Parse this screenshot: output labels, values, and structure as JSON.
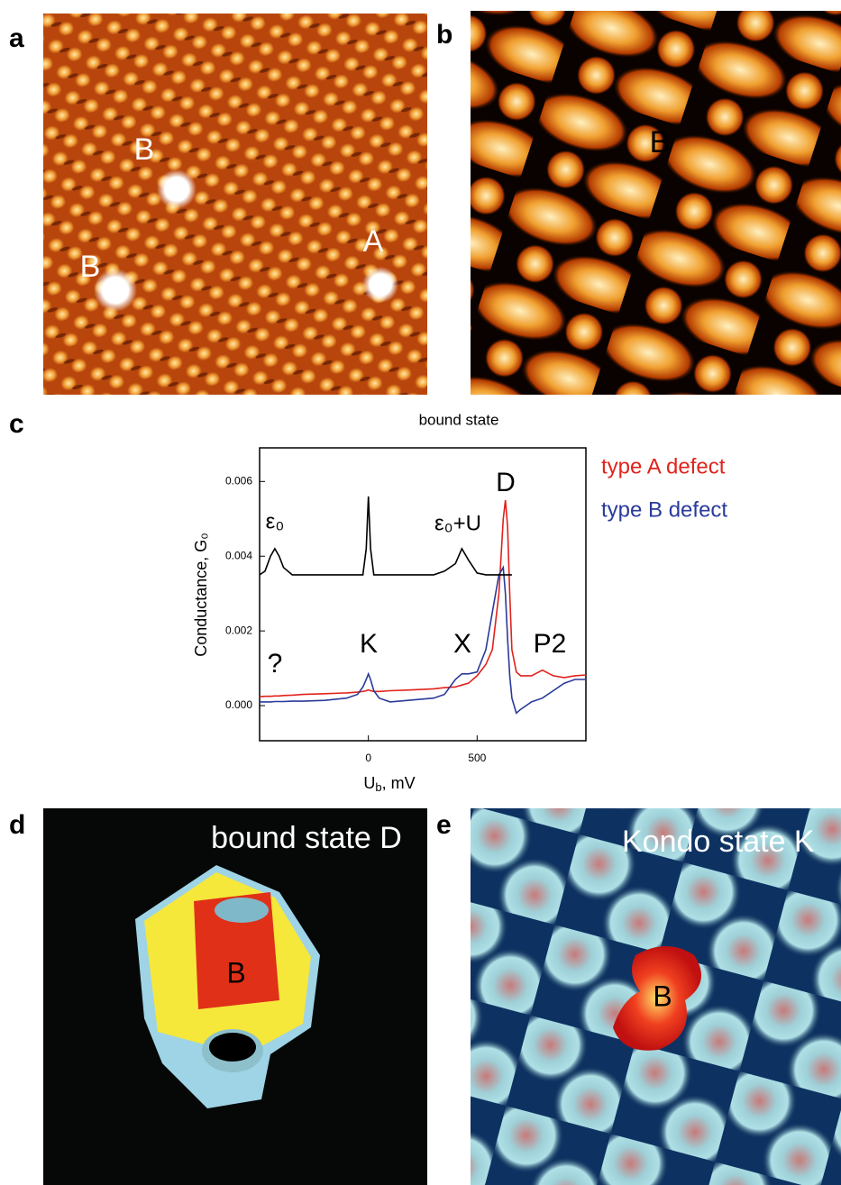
{
  "panel_labels": [
    "a",
    "b",
    "c",
    "d",
    "e"
  ],
  "panel_a": {
    "labels": [
      "B",
      "B",
      "A"
    ]
  },
  "panel_b": {
    "labels": [
      "B"
    ]
  },
  "panel_d": {
    "title": "bound state D",
    "labels": [
      "B"
    ]
  },
  "panel_e": {
    "title": "Kondo state K",
    "labels": [
      "B"
    ]
  },
  "chart_data": {
    "type": "line",
    "title": "bound state",
    "ylabel": "Conductance, G₀",
    "xlabel": [
      "U",
      "b",
      ", mV"
    ],
    "xlim": [
      -500,
      1000
    ],
    "xticks": [
      0,
      500
    ],
    "ylim": [
      -0.00094,
      0.0069
    ],
    "yticks": [
      {
        "value": 0,
        "label": "0.000"
      },
      {
        "value": 0.002,
        "label": "0.002"
      },
      {
        "value": 0.004,
        "label": "0.004"
      },
      {
        "value": 0.006,
        "label": "0.006"
      }
    ],
    "x": [
      -500,
      -475,
      -450,
      -430,
      -410,
      -390,
      -350,
      -300,
      -200,
      -100,
      -50,
      -25,
      -10,
      0,
      10,
      25,
      50,
      100,
      200,
      300,
      350,
      400,
      430,
      460,
      500,
      540,
      570,
      600,
      620,
      630,
      640,
      650,
      660,
      680,
      700,
      750,
      800,
      850,
      900,
      950,
      1000
    ],
    "series": [
      {
        "name": "type A defect",
        "color": "#e0231c",
        "values": [
          0.00024,
          0.00025,
          0.00025,
          0.00026,
          0.00026,
          0.00027,
          0.00028,
          0.0003,
          0.00032,
          0.00034,
          0.00036,
          0.00038,
          0.0004,
          0.00042,
          0.0004,
          0.00038,
          0.00038,
          0.0004,
          0.00042,
          0.00045,
          0.00048,
          0.0005,
          0.00055,
          0.0006,
          0.0008,
          0.0011,
          0.0015,
          0.003,
          0.005,
          0.0055,
          0.0048,
          0.003,
          0.0015,
          0.0009,
          0.0008,
          0.0008,
          0.00095,
          0.0008,
          0.00075,
          0.0008,
          0.00082
        ]
      },
      {
        "name": "type B defect",
        "color": "#2a3a9a",
        "values": [
          0.0001,
          0.0001,
          0.0001,
          0.00011,
          0.00011,
          0.00011,
          0.00012,
          0.00012,
          0.00014,
          0.0002,
          0.0003,
          0.0005,
          0.0007,
          0.00085,
          0.0007,
          0.0004,
          0.0002,
          0.0001,
          0.00015,
          0.0002,
          0.0003,
          0.0007,
          0.00085,
          0.00085,
          0.0009,
          0.0015,
          0.0025,
          0.0035,
          0.0037,
          0.003,
          0.0018,
          0.0008,
          0.0002,
          -0.0002,
          -0.0001,
          0.0001,
          0.0002,
          0.0004,
          0.0006,
          0.0007,
          0.0007
        ]
      },
      {
        "color": "#000000",
        "values": [
          0.0035,
          0.0036,
          0.004,
          0.0042,
          0.004,
          0.0037,
          0.0035,
          0.0035,
          0.0035,
          0.0035,
          0.0035,
          0.0035,
          0.0042,
          0.0056,
          0.0042,
          0.0035,
          0.0035,
          0.0035,
          0.0035,
          0.0035,
          0.0036,
          0.0038,
          0.0042,
          0.0039,
          0.00355,
          0.0035,
          0.0035,
          0.0035,
          0.0035,
          0.0035,
          0.0035,
          0.0035,
          0.0035,
          null,
          null,
          null,
          null,
          null,
          null,
          null,
          null
        ]
      }
    ],
    "annotations": [
      "ε₀",
      "ε₀+U",
      "D",
      "K",
      "X",
      "P2",
      "?"
    ]
  }
}
